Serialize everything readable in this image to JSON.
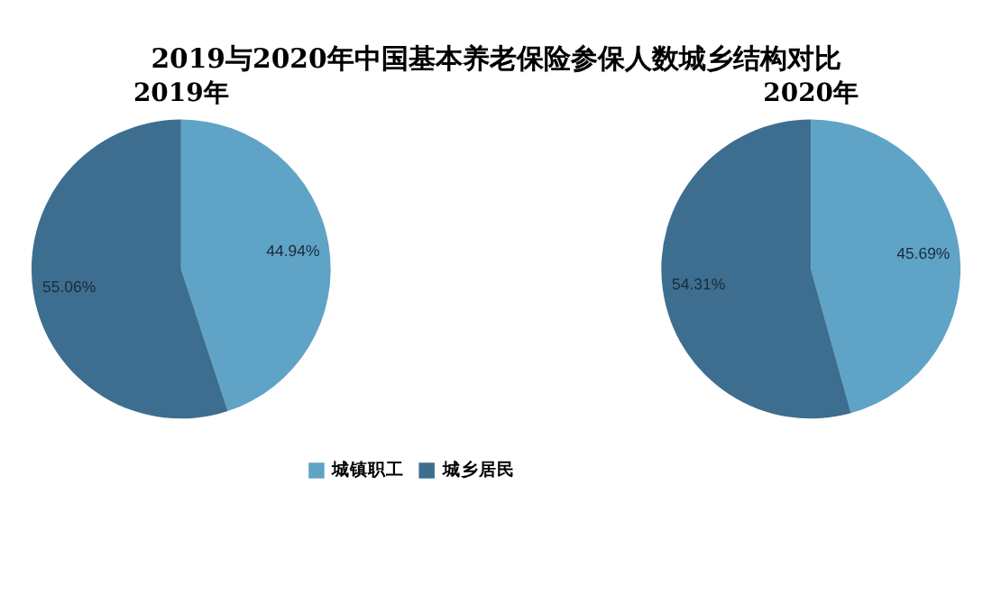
{
  "chart_data": {
    "type": "pie",
    "title": "2019与2020年中国基本养老保险参保人数城乡结构对比",
    "categories": [
      "城镇职工",
      "城乡居民"
    ],
    "colors": [
      "#5fa3c6",
      "#3d6e8f"
    ],
    "legend": "bottom",
    "series": [
      {
        "name": "2019年",
        "values": [
          44.94,
          55.06
        ],
        "value_labels": [
          "44.94%",
          "55.06%"
        ]
      },
      {
        "name": "2020年",
        "values": [
          45.69,
          54.31
        ],
        "value_labels": [
          "45.69%",
          "54.31%"
        ]
      }
    ]
  }
}
